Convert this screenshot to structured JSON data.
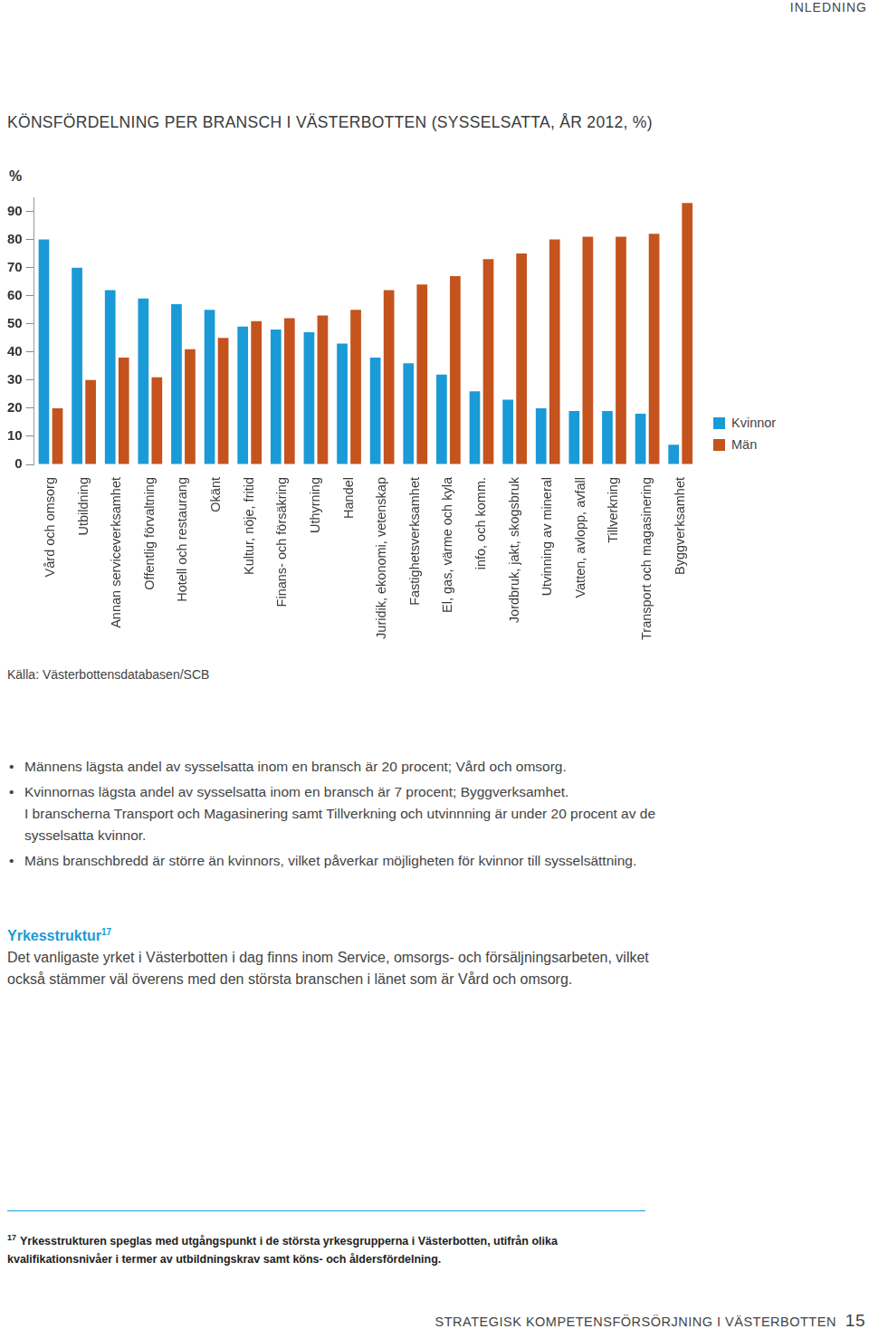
{
  "header": "INLEDNING",
  "chart_data": {
    "type": "bar",
    "title": "KÖNSFÖRDELNING PER BRANSCH I VÄSTERBOTTEN (SYSSELSATTA, ÅR 2012, %)",
    "y_label": "%",
    "categories": [
      "Vård och omsorg",
      "Utbildning",
      "Annan serviceverksamhet",
      "Offentlig förvaltning",
      "Hotell och restaurang",
      "Okänt",
      "Kultur, nöje, fritid",
      "Finans- och försäkring",
      "Uthyrning",
      "Handel",
      "Juridik, ekonomi, vetenskap",
      "Fastighetsverksamhet",
      "El, gas, värme och kyla",
      "info, och komm.",
      "Jordbruk, jakt, skogsbruk",
      "Utvinning av mineral",
      "Vatten, avlopp, avfall",
      "Tillverkning",
      "Transport och magasinering",
      "Byggverksamhet"
    ],
    "series": [
      {
        "name": "Kvinnor",
        "color": "#1a9ad6",
        "values": [
          80,
          70,
          62,
          59,
          57,
          55,
          49,
          48,
          47,
          43,
          38,
          36,
          32,
          26,
          23,
          20,
          19,
          19,
          18,
          7
        ]
      },
      {
        "name": "Män",
        "color": "#c4531e",
        "values": [
          20,
          30,
          38,
          31,
          41,
          45,
          51,
          52,
          53,
          55,
          62,
          64,
          67,
          73,
          75,
          80,
          81,
          81,
          82,
          93
        ]
      }
    ],
    "ylim": [
      0,
      95
    ],
    "yticks": [
      0,
      10,
      20,
      30,
      40,
      50,
      60,
      70,
      80,
      90
    ],
    "grid": false,
    "legend": "right"
  },
  "source": "Källa: Västerbottensdatabasen/SCB",
  "bullets": [
    [
      "Männens lägsta andel av sysselsatta inom en bransch är 20 procent; Vård och omsorg."
    ],
    [
      "Kvinnornas lägsta andel av sysselsatta inom en bransch är 7 procent; Byggverksamhet.",
      "I branscherna Transport och Magasinering samt Tillverkning och utvinnning är under 20 procent av de sysselsatta kvinnor."
    ],
    [
      "Mäns branschbredd är större än kvinnors, vilket påverkar möjligheten för kvinnor till sysselsättning."
    ]
  ],
  "section": {
    "heading": "Yrkesstruktur",
    "note_ref": "17",
    "text": "Det vanligaste yrket i Västerbotten i dag finns inom Service, omsorgs- och försäljningsarbeten, vilket också stämmer väl överens med den största branschen i länet som är Vård och omsorg."
  },
  "footnote": {
    "ref": "17",
    "text": "Yrkesstrukturen speglas med utgångspunkt i de största yrkesgrupperna i Västerbotten, utifrån olika kvalifikationsnivåer i termer av utbildningskrav samt köns- och åldersfördelning."
  },
  "footer": {
    "text": "STRATEGISK KOMPETENSFÖRSÖRJNING I VÄSTERBOTTEN",
    "page": "15"
  }
}
